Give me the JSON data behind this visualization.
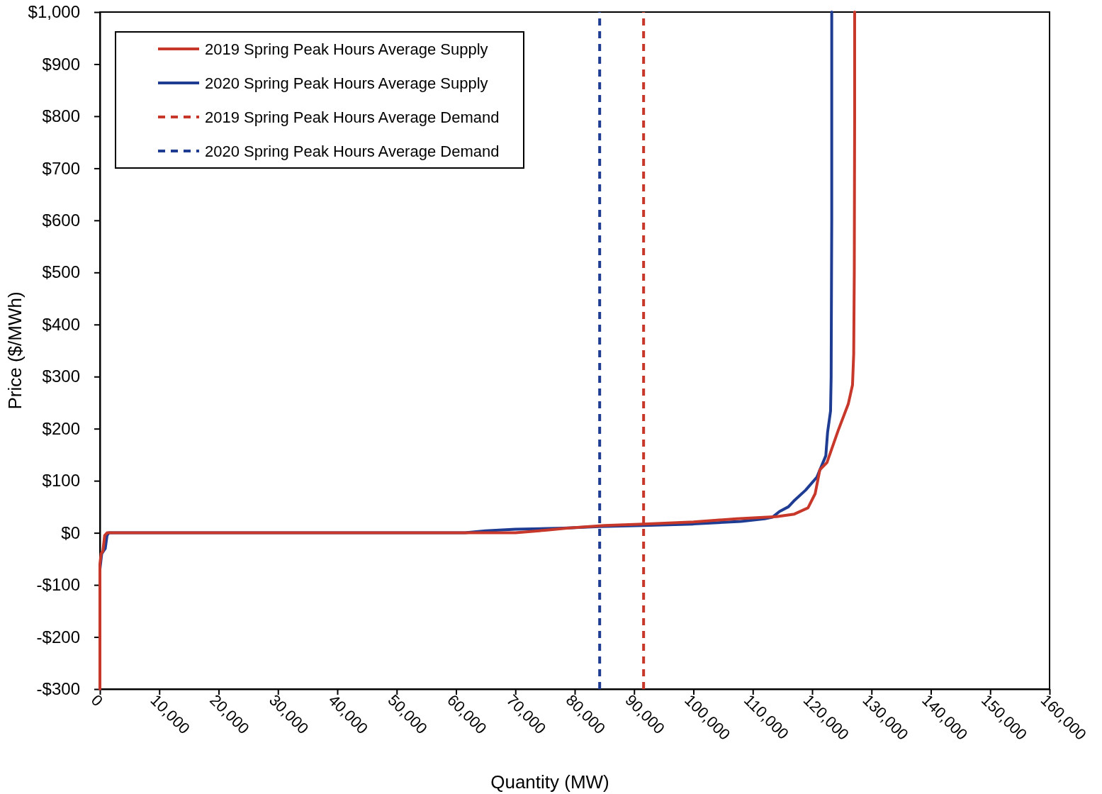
{
  "chart_data": {
    "type": "line",
    "xlabel": "Quantity (MW)",
    "ylabel": "Price ($/MWh)",
    "xlim": [
      0,
      160000
    ],
    "xticks": [
      {
        "value": 0,
        "label": "0"
      },
      {
        "value": 10000,
        "label": "10,000"
      },
      {
        "value": 20000,
        "label": "20,000"
      },
      {
        "value": 30000,
        "label": "30,000"
      },
      {
        "value": 40000,
        "label": "40,000"
      },
      {
        "value": 50000,
        "label": "50,000"
      },
      {
        "value": 60000,
        "label": "60,000"
      },
      {
        "value": 70000,
        "label": "70,000"
      },
      {
        "value": 80000,
        "label": "80,000"
      },
      {
        "value": 90000,
        "label": "90,000"
      },
      {
        "value": 100000,
        "label": "100,000"
      },
      {
        "value": 110000,
        "label": "110,000"
      },
      {
        "value": 120000,
        "label": "120,000"
      },
      {
        "value": 130000,
        "label": "130,000"
      },
      {
        "value": 140000,
        "label": "140,000"
      },
      {
        "value": 150000,
        "label": "150,000"
      },
      {
        "value": 160000,
        "label": "160,000"
      }
    ],
    "ylim": [
      -300,
      1000
    ],
    "yticks": [
      {
        "value": -300,
        "label": "-$300"
      },
      {
        "value": -200,
        "label": "-$200"
      },
      {
        "value": -100,
        "label": "-$100"
      },
      {
        "value": 0,
        "label": "$0"
      },
      {
        "value": 100,
        "label": "$100"
      },
      {
        "value": 200,
        "label": "$200"
      },
      {
        "value": 300,
        "label": "$300"
      },
      {
        "value": 400,
        "label": "$400"
      },
      {
        "value": 500,
        "label": "$500"
      },
      {
        "value": 600,
        "label": "$600"
      },
      {
        "value": 700,
        "label": "$700"
      },
      {
        "value": 800,
        "label": "$800"
      },
      {
        "value": 900,
        "label": "$900"
      },
      {
        "value": 1000,
        "label": "$1,000"
      }
    ],
    "grid": false,
    "legend": "top left",
    "marker": "none",
    "series": [
      {
        "name": "2019 Spring Peak Hours Average Supply",
        "color": "#c8382a",
        "line_style": "solid",
        "x": [
          0,
          0,
          200,
          500,
          800,
          1200,
          60000,
          70000,
          75000,
          78700,
          85000,
          91600,
          100000,
          107300,
          114000,
          117000,
          119300,
          120500,
          121300,
          122500,
          124400,
          126100,
          126800,
          127000,
          127100,
          127160,
          127160
        ],
        "values": [
          -300,
          -60,
          -40,
          -35,
          -5,
          0,
          0,
          0,
          5,
          9,
          14,
          17,
          21,
          27,
          31,
          36,
          48,
          75,
          121,
          135,
          197,
          248,
          284,
          343,
          500,
          800,
          1000
        ]
      },
      {
        "name": "2020 Spring Peak Hours Average Supply",
        "color": "#1f3c93",
        "line_style": "solid",
        "x": [
          0,
          0,
          300,
          900,
          1200,
          1500,
          61500,
          65000,
          70000,
          78000,
          84200,
          91600,
          100000,
          108000,
          112000,
          113300,
          114500,
          116000,
          116900,
          118900,
          120800,
          122300,
          122600,
          123100,
          123200,
          123300,
          123300
        ],
        "values": [
          -300,
          -70,
          -40,
          -30,
          -5,
          0,
          0,
          4,
          7,
          9,
          12,
          14,
          17,
          22,
          27,
          30,
          41,
          50,
          61,
          82,
          107,
          148,
          193,
          234,
          298,
          600,
          1000
        ]
      },
      {
        "name": "2019 Spring Peak Hours Average Demand",
        "color": "#c8382a",
        "line_style": "dashed",
        "x": [
          91600,
          91600
        ],
        "values": [
          -300,
          1000
        ]
      },
      {
        "name": "2020 Spring Peak Hours Average Demand",
        "color": "#1f3c93",
        "line_style": "dashed",
        "x": [
          84200,
          84200
        ],
        "values": [
          -300,
          1000
        ]
      }
    ]
  }
}
